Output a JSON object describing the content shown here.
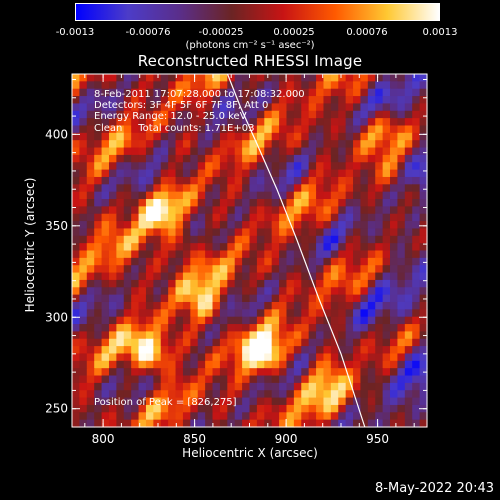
{
  "colorbar": {
    "ticks": [
      "-0.0013",
      "-0.00076",
      "-0.00025",
      "0.00025",
      "0.00076",
      "0.0013"
    ],
    "units": "(photons cm⁻² s⁻¹ asec⁻²)",
    "range": [
      -0.0013,
      0.0013
    ]
  },
  "info": {
    "time_range": "8-Feb-2011 17:07:28.000 to 17:08:32.000",
    "detectors": "Detectors: 3F 4F 5F 6F 7F 8F, Att 0",
    "energy": "Energy Range: 12.0 - 25.0 keV",
    "clean": "Clean     Total counts: 1.71E+03",
    "peak": "Position of Peak = [826,275]"
  },
  "footer": {
    "date": "8-May-2022 20:43"
  },
  "chart_data": {
    "type": "heatmap",
    "title": "Reconstructed RHESSI Image",
    "xlabel": "Heliocentric X (arcsec)",
    "ylabel": "Heliocentric Y (arcsec)",
    "xlim": [
      783,
      977
    ],
    "ylim": [
      240,
      433
    ],
    "xticks": [
      800,
      850,
      900,
      950
    ],
    "yticks": [
      250,
      300,
      350,
      400
    ],
    "peak_position": [
      826,
      275
    ],
    "limb_curve": {
      "x": [
        868,
        875,
        884,
        895,
        906,
        918,
        930,
        943
      ],
      "y": [
        433,
        415,
        395,
        370,
        342,
        310,
        280,
        240
      ]
    },
    "colormap": [
      "#0000ff",
      "#4c3cc8",
      "#5a2e8a",
      "#6b2424",
      "#c81414",
      "#ff5a00",
      "#ffc832",
      "#ffffff"
    ]
  }
}
